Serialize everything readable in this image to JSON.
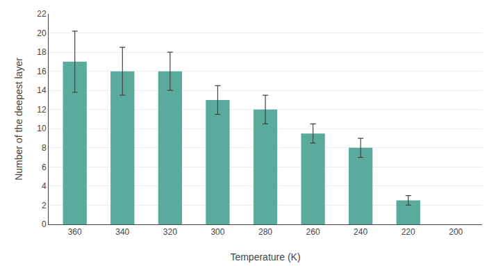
{
  "chart_data": {
    "type": "bar",
    "categories": [
      "360",
      "340",
      "320",
      "300",
      "280",
      "260",
      "240",
      "220",
      "200"
    ],
    "values": [
      17,
      16,
      16,
      13,
      12,
      9.5,
      8,
      2.5,
      null
    ],
    "errors": [
      3.2,
      2.5,
      2.0,
      1.5,
      1.5,
      1.0,
      1.0,
      0.5,
      null
    ],
    "color": "#5aaa9e",
    "xlabel": "Temperature (K)",
    "ylabel": "Number of the deepest layer",
    "ylim": [
      0,
      22
    ],
    "yticks": [
      0,
      2,
      4,
      6,
      8,
      10,
      12,
      14,
      16,
      18,
      20,
      22
    ],
    "grid": true
  }
}
